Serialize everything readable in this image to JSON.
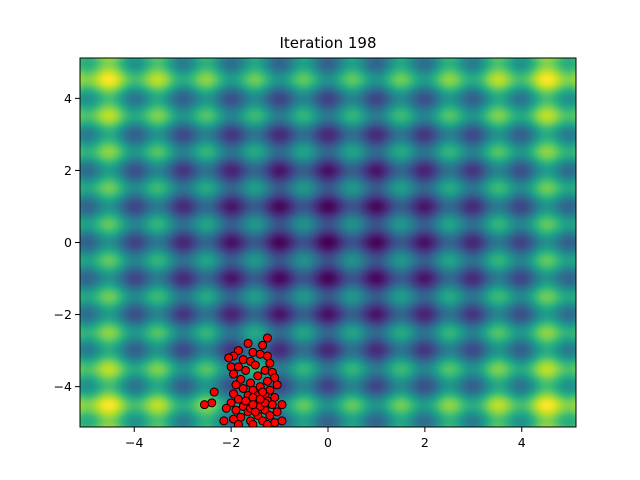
{
  "chart_data": {
    "type": "scatter",
    "title": "Iteration 198",
    "xlabel": "",
    "ylabel": "",
    "xlim": [
      -5.12,
      5.12
    ],
    "ylim": [
      -5.12,
      5.12
    ],
    "x_ticks": [
      -4,
      -2,
      0,
      2,
      4
    ],
    "y_ticks": [
      -4,
      -2,
      0,
      2,
      4
    ],
    "x_tick_labels": [
      "−4",
      "−2",
      "0",
      "2",
      "4"
    ],
    "y_tick_labels": [
      "−4",
      "−2",
      "0",
      "2",
      "4"
    ],
    "grid": false,
    "legend": "none",
    "background": {
      "kind": "heatmap",
      "function": "Rastrigin",
      "colormap": "viridis",
      "range": [
        -5.12,
        5.12
      ]
    },
    "marker_color": "#ff0000",
    "marker_edge_color": "#000000",
    "points": [
      [
        -1.25,
        -2.65
      ],
      [
        -1.35,
        -2.85
      ],
      [
        -1.65,
        -2.8
      ],
      [
        -1.85,
        -3.0
      ],
      [
        -1.95,
        -3.15
      ],
      [
        -2.05,
        -3.2
      ],
      [
        -1.55,
        -3.05
      ],
      [
        -1.4,
        -3.1
      ],
      [
        -1.25,
        -3.15
      ],
      [
        -1.2,
        -3.35
      ],
      [
        -1.75,
        -3.25
      ],
      [
        -1.6,
        -3.3
      ],
      [
        -2.0,
        -3.45
      ],
      [
        -1.85,
        -3.45
      ],
      [
        -1.5,
        -3.4
      ],
      [
        -1.3,
        -3.55
      ],
      [
        -1.15,
        -3.6
      ],
      [
        -1.7,
        -3.55
      ],
      [
        -1.95,
        -3.65
      ],
      [
        -1.1,
        -3.75
      ],
      [
        -1.45,
        -3.7
      ],
      [
        -1.8,
        -3.8
      ],
      [
        -1.25,
        -3.85
      ],
      [
        -1.6,
        -3.9
      ],
      [
        -1.05,
        -3.95
      ],
      [
        -1.9,
        -3.95
      ],
      [
        -1.4,
        -4.0
      ],
      [
        -1.75,
        -4.05
      ],
      [
        -1.2,
        -4.1
      ],
      [
        -1.55,
        -4.1
      ],
      [
        -2.35,
        -4.15
      ],
      [
        -1.95,
        -4.2
      ],
      [
        -1.3,
        -4.25
      ],
      [
        -1.65,
        -4.25
      ],
      [
        -1.1,
        -4.3
      ],
      [
        -1.85,
        -4.35
      ],
      [
        -1.45,
        -4.35
      ],
      [
        -1.25,
        -4.4
      ],
      [
        -2.0,
        -4.45
      ],
      [
        -1.6,
        -4.45
      ],
      [
        -2.4,
        -4.45
      ],
      [
        -1.15,
        -4.5
      ],
      [
        -1.4,
        -4.5
      ],
      [
        -1.75,
        -4.55
      ],
      [
        -0.95,
        -4.5
      ],
      [
        -2.55,
        -4.5
      ],
      [
        -1.5,
        -4.6
      ],
      [
        -1.3,
        -4.65
      ],
      [
        -1.9,
        -4.65
      ],
      [
        -2.1,
        -4.6
      ],
      [
        -1.65,
        -4.7
      ],
      [
        -1.05,
        -4.7
      ],
      [
        -1.2,
        -4.8
      ],
      [
        -1.45,
        -4.8
      ],
      [
        -1.8,
        -4.85
      ],
      [
        -1.95,
        -4.9
      ],
      [
        -1.6,
        -4.95
      ],
      [
        -1.35,
        -4.95
      ],
      [
        -1.1,
        -5.0
      ],
      [
        -0.95,
        -4.95
      ],
      [
        -2.15,
        -4.95
      ],
      [
        -1.55,
        -5.05
      ],
      [
        -1.85,
        -5.05
      ],
      [
        -1.25,
        -5.05
      ],
      [
        -1.45,
        -4.25
      ],
      [
        -1.5,
        -4.4
      ],
      [
        -1.4,
        -4.55
      ],
      [
        -1.55,
        -4.3
      ],
      [
        -1.35,
        -4.15
      ],
      [
        -1.6,
        -4.6
      ],
      [
        -1.7,
        -4.4
      ],
      [
        -1.3,
        -4.45
      ],
      [
        -1.5,
        -4.7
      ],
      [
        -1.4,
        -4.35
      ],
      [
        -1.55,
        -4.5
      ]
    ]
  }
}
